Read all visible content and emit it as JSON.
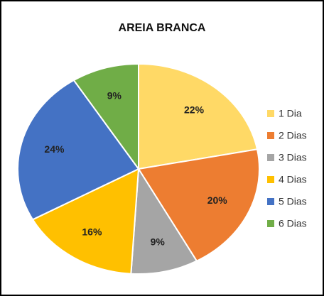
{
  "chart_data": {
    "type": "pie",
    "title": "AREIA BRANCA",
    "categories": [
      "1 Dia",
      "2 Dias",
      "3 Dias",
      "4 Dias",
      "5 Dias",
      "6 Dias"
    ],
    "values": [
      22,
      20,
      9,
      16,
      24,
      9
    ],
    "value_labels": [
      "22%",
      "20%",
      "9%",
      "16%",
      "24%",
      "9%"
    ],
    "colors": [
      "#ffd966",
      "#ed7d31",
      "#a5a5a5",
      "#ffc000",
      "#4472c4",
      "#70ad47"
    ],
    "legend": "right"
  }
}
